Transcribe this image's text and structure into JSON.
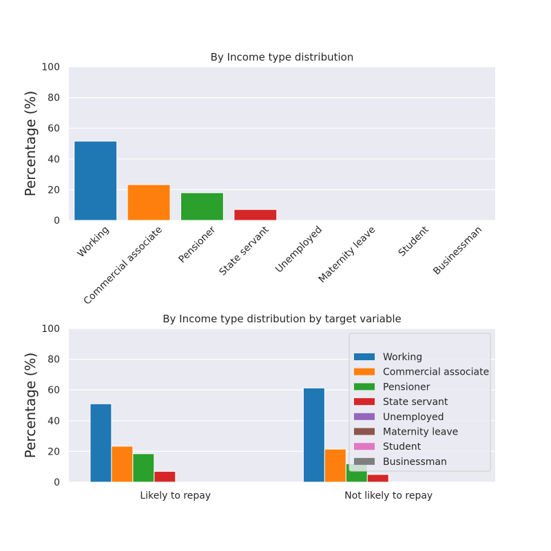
{
  "chart_data": [
    {
      "type": "bar",
      "title": "By Income type distribution",
      "xlabel": "",
      "ylabel": "Percentage (%)",
      "ylim": [
        0,
        100
      ],
      "yticks": [
        0,
        20,
        40,
        60,
        80,
        100
      ],
      "grid": true,
      "categories": [
        "Working",
        "Commercial associate",
        "Pensioner",
        "State servant",
        "Unemployed",
        "Maternity leave",
        "Student",
        "Businessman"
      ],
      "values": [
        51.6,
        23.3,
        18.0,
        7.1,
        0.01,
        0.01,
        0.01,
        0.0
      ],
      "colors": [
        "#1f77b4",
        "#ff7f0e",
        "#2ca02c",
        "#d62728",
        "#9467bd",
        "#8c564b",
        "#e377c2",
        "#7f7f7f"
      ]
    },
    {
      "type": "bar",
      "title": "By Income type distribution by target variable",
      "xlabel": "",
      "ylabel": "Percentage (%)",
      "ylim": [
        0,
        100
      ],
      "yticks": [
        0,
        20,
        40,
        60,
        80,
        100
      ],
      "grid": true,
      "categories": [
        "Likely to repay",
        "Not likely to repay"
      ],
      "legend_position": "upper-right",
      "series": [
        {
          "name": "Working",
          "color": "#1f77b4",
          "values": [
            51.0,
            61.3
          ]
        },
        {
          "name": "Commercial associate",
          "color": "#ff7f0e",
          "values": [
            23.4,
            21.5
          ]
        },
        {
          "name": "Pensioner",
          "color": "#2ca02c",
          "values": [
            18.5,
            12.0
          ]
        },
        {
          "name": "State servant",
          "color": "#d62728",
          "values": [
            7.0,
            5.0
          ]
        },
        {
          "name": "Unemployed",
          "color": "#9467bd",
          "values": [
            0.01,
            0.1
          ]
        },
        {
          "name": "Maternity leave",
          "color": "#8c564b",
          "values": [
            0.0,
            0.01
          ]
        },
        {
          "name": "Student",
          "color": "#e377c2",
          "values": [
            0.01,
            0.0
          ]
        },
        {
          "name": "Businessman",
          "color": "#7f7f7f",
          "values": [
            0.0,
            0.0
          ]
        }
      ]
    }
  ]
}
